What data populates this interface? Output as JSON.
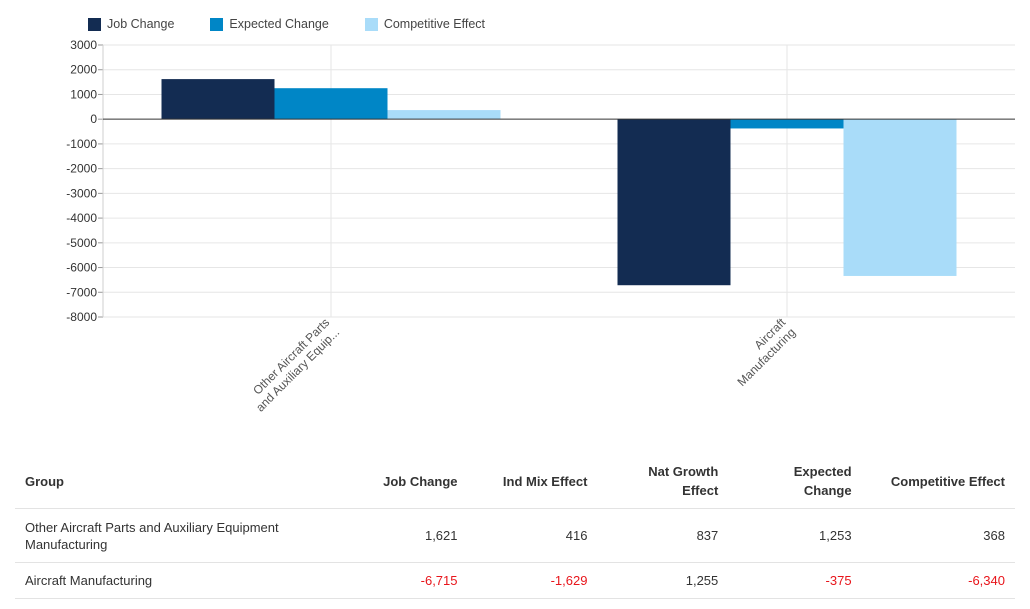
{
  "chart_data": {
    "type": "bar",
    "categories": [
      "Other Aircraft Parts and Auxiliary Equipment Manufacturing",
      "Aircraft Manufacturing"
    ],
    "tick_labels": [
      [
        "Other Aircraft Parts",
        "and Auxiliary Equip..."
      ],
      [
        "Aircraft",
        "Manufacturing"
      ]
    ],
    "series": [
      {
        "name": "Job Change",
        "values": [
          1621,
          -6715
        ],
        "color": "#132c52"
      },
      {
        "name": "Expected Change",
        "values": [
          1253,
          -375
        ],
        "color": "#0086c6"
      },
      {
        "name": "Competitive Effect",
        "values": [
          368,
          -6340
        ],
        "color": "#a9dcf9"
      }
    ],
    "ylim": [
      -8000,
      3000
    ],
    "yticks": [
      3000,
      2000,
      1000,
      0,
      -1000,
      -2000,
      -3000,
      -4000,
      -5000,
      -6000,
      -7000,
      -8000
    ],
    "grid": true,
    "legend_position": "top-left"
  },
  "table": {
    "headers": [
      [
        "Group"
      ],
      [
        "Job Change"
      ],
      [
        "Ind Mix Effect"
      ],
      [
        "Nat Growth",
        "Effect"
      ],
      [
        "Expected",
        "Change"
      ],
      [
        "Competitive Effect"
      ]
    ],
    "rows": [
      {
        "cells": [
          "Other Aircraft Parts and Auxiliary Equipment Manufacturing",
          "1,621",
          "416",
          "837",
          "1,253",
          "368"
        ]
      },
      {
        "cells": [
          "Aircraft Manufacturing",
          "-6,715",
          "-1,629",
          "1,255",
          "-375",
          "-6,340"
        ]
      }
    ]
  },
  "colors": {
    "negative": "#e8151b",
    "grid": "#e6e6e6",
    "axis": "#333333"
  }
}
